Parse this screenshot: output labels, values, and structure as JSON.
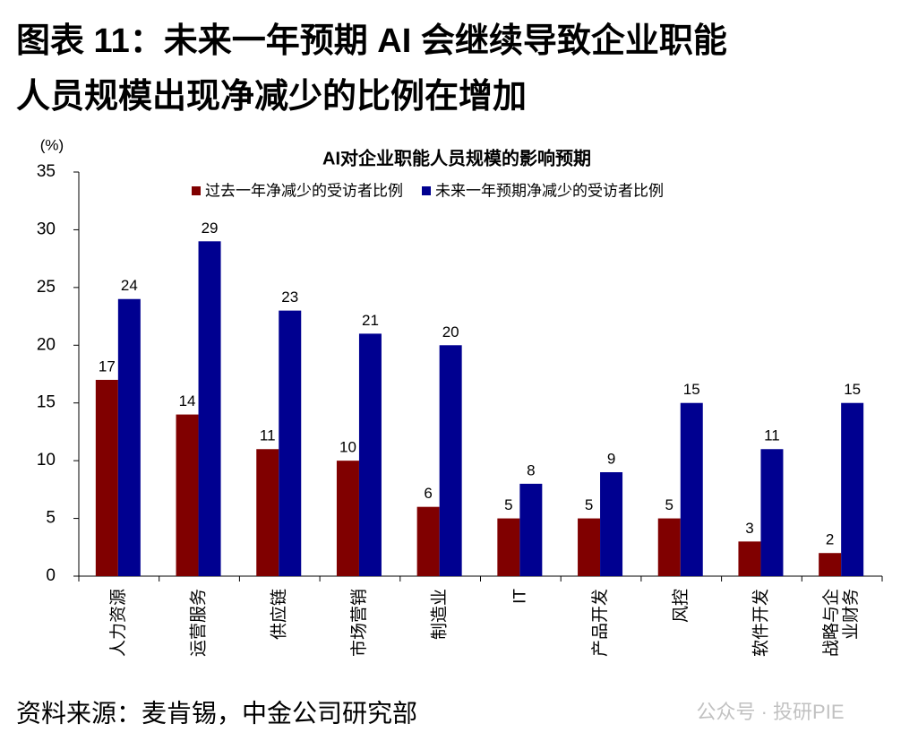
{
  "header": {
    "title_line1": "图表 11：未来一年预期 AI 会继续导致企业职能",
    "title_line2": "人员规模出现净减少的比例在增加"
  },
  "chart_data": {
    "type": "bar",
    "title": "AI对企业职能人员规模的影响预期",
    "y_unit": "(%)",
    "categories": [
      "人力资源",
      "运营服务",
      "供应链",
      "市场营销",
      "制造业",
      "IT",
      "产品开发",
      "风控",
      "软件开发",
      "战略与企业财务"
    ],
    "series": [
      {
        "name": "过去一年净减少的受访者比例",
        "color": "#800000",
        "values": [
          17,
          14,
          11,
          10,
          6,
          5,
          5,
          5,
          3,
          2
        ]
      },
      {
        "name": "未来一年预期净减少的受访者比例",
        "color": "#000090",
        "values": [
          24,
          29,
          23,
          21,
          20,
          8,
          9,
          15,
          11,
          15
        ]
      }
    ],
    "ylim": [
      0,
      35
    ],
    "yticks": [
      0,
      5,
      10,
      15,
      20,
      25,
      30,
      35
    ],
    "grid": false,
    "legend": "top"
  },
  "footer": {
    "source": "资料来源：麦肯锡，中金公司研究部",
    "watermark": "公众号 · 投研PIE"
  }
}
